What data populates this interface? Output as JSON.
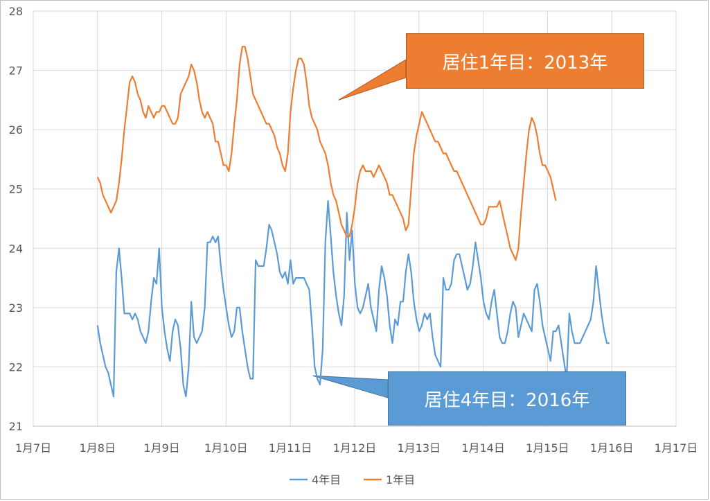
{
  "chart_data": {
    "type": "line",
    "title": "",
    "xlabel": "",
    "ylabel": "",
    "ylim": [
      21,
      28
    ],
    "yticks": [
      21,
      22,
      23,
      24,
      25,
      26,
      27,
      28
    ],
    "xlim": [
      7,
      17
    ],
    "x_tick_labels": [
      "1月7日",
      "1月8日",
      "1月9日",
      "1月10日",
      "1月11日",
      "1月12日",
      "1月13日",
      "1月14日",
      "1月15日",
      "1月16日",
      "1月17日"
    ],
    "grid": true,
    "legend_position": "bottom",
    "series": [
      {
        "name": "4年目",
        "color": "#5b9bd5",
        "x_start": 8.0,
        "x_step": 0.0417,
        "values": [
          22.7,
          22.4,
          22.2,
          22.0,
          21.9,
          21.7,
          21.5,
          23.6,
          24.0,
          23.5,
          22.9,
          22.9,
          22.9,
          22.8,
          22.9,
          22.8,
          22.6,
          22.5,
          22.4,
          22.6,
          23.1,
          23.5,
          23.4,
          24.0,
          23.0,
          22.6,
          22.3,
          22.1,
          22.6,
          22.8,
          22.7,
          22.3,
          21.7,
          21.5,
          22.0,
          23.1,
          22.5,
          22.4,
          22.5,
          22.6,
          23.0,
          24.1,
          24.1,
          24.2,
          24.1,
          24.2,
          23.7,
          23.3,
          23.0,
          22.7,
          22.5,
          22.6,
          23.0,
          23.0,
          22.6,
          22.3,
          22.0,
          21.8,
          21.8,
          23.8,
          23.7,
          23.7,
          23.7,
          24.0,
          24.4,
          24.3,
          24.1,
          23.9,
          23.6,
          23.5,
          23.6,
          23.4,
          23.8,
          23.4,
          23.5,
          23.5,
          23.5,
          23.5,
          23.4,
          23.3,
          22.7,
          22.0,
          21.8,
          21.7,
          22.3,
          24.1,
          24.8,
          24.2,
          23.6,
          23.2,
          22.9,
          22.7,
          23.2,
          24.6,
          23.8,
          24.3,
          23.4,
          23.0,
          22.9,
          23.0,
          23.2,
          23.4,
          23.0,
          22.8,
          22.6,
          23.3,
          23.7,
          23.5,
          23.2,
          22.7,
          22.4,
          22.8,
          22.7,
          23.1,
          23.1,
          23.6,
          23.9,
          23.6,
          23.1,
          22.8,
          22.6,
          22.7,
          22.9,
          22.8,
          22.9,
          22.5,
          22.2,
          22.1,
          22.0,
          23.5,
          23.3,
          23.3,
          23.4,
          23.8,
          23.9,
          23.9,
          23.7,
          23.5,
          23.3,
          23.4,
          23.7,
          24.1,
          23.8,
          23.5,
          23.1,
          22.9,
          22.8,
          23.1,
          23.3,
          22.9,
          22.5,
          22.4,
          22.4,
          22.6,
          22.9,
          23.1,
          23.0,
          22.5,
          22.7,
          22.9,
          22.8,
          22.7,
          22.6,
          23.3,
          23.4,
          23.1,
          22.7,
          22.5,
          22.3,
          22.1,
          22.6,
          22.6,
          22.7,
          22.4,
          22.1,
          21.8,
          22.9,
          22.6,
          22.4,
          22.4,
          22.4,
          22.5,
          22.6,
          22.7,
          22.8,
          23.1,
          23.7,
          23.3,
          22.9,
          22.6,
          22.4,
          22.4
        ]
      },
      {
        "name": "1年目",
        "color": "#ed7d31",
        "x_start": 8.0,
        "x_step": 0.0417,
        "values": [
          25.2,
          25.1,
          24.9,
          24.8,
          24.7,
          24.6,
          24.7,
          24.8,
          25.1,
          25.5,
          26.0,
          26.4,
          26.8,
          26.9,
          26.8,
          26.6,
          26.5,
          26.3,
          26.2,
          26.4,
          26.3,
          26.2,
          26.3,
          26.3,
          26.4,
          26.4,
          26.3,
          26.2,
          26.1,
          26.1,
          26.2,
          26.6,
          26.7,
          26.8,
          26.9,
          27.1,
          27.0,
          26.8,
          26.5,
          26.3,
          26.2,
          26.3,
          26.2,
          26.1,
          25.8,
          25.8,
          25.6,
          25.4,
          25.4,
          25.3,
          25.6,
          26.1,
          26.5,
          27.1,
          27.4,
          27.4,
          27.2,
          26.9,
          26.6,
          26.5,
          26.4,
          26.3,
          26.2,
          26.1,
          26.1,
          26.0,
          25.9,
          25.7,
          25.6,
          25.4,
          25.3,
          25.6,
          26.3,
          26.7,
          27.0,
          27.2,
          27.2,
          27.1,
          26.8,
          26.4,
          26.2,
          26.1,
          26.0,
          25.8,
          25.7,
          25.6,
          25.4,
          25.1,
          24.9,
          24.8,
          24.6,
          24.4,
          24.3,
          24.2,
          24.2,
          24.4,
          24.7,
          25.1,
          25.3,
          25.4,
          25.3,
          25.3,
          25.3,
          25.2,
          25.3,
          25.4,
          25.3,
          25.2,
          25.1,
          24.9,
          24.9,
          24.8,
          24.7,
          24.6,
          24.5,
          24.3,
          24.4,
          25.0,
          25.6,
          25.9,
          26.1,
          26.3,
          26.2,
          26.1,
          26.0,
          25.9,
          25.8,
          25.8,
          25.7,
          25.6,
          25.6,
          25.5,
          25.4,
          25.3,
          25.3,
          25.2,
          25.1,
          25.0,
          24.9,
          24.8,
          24.7,
          24.6,
          24.5,
          24.4,
          24.4,
          24.5,
          24.7,
          24.7,
          24.7,
          24.7,
          24.8,
          24.6,
          24.4,
          24.2,
          24.0,
          23.9,
          23.8,
          24.0,
          24.6,
          25.1,
          25.6,
          26.0,
          26.2,
          26.1,
          25.9,
          25.6,
          25.4,
          25.4,
          25.3,
          25.2,
          25.0,
          24.8
        ]
      }
    ],
    "annotations": [
      {
        "text": "居住1年目：2013年",
        "series": "1年目",
        "x": 11.75,
        "y": 26.5,
        "color": "#ed7d31"
      },
      {
        "text": "居住4年目：2016年",
        "series": "4年目",
        "x": 11.35,
        "y": 21.85,
        "color": "#5b9bd5"
      }
    ]
  }
}
